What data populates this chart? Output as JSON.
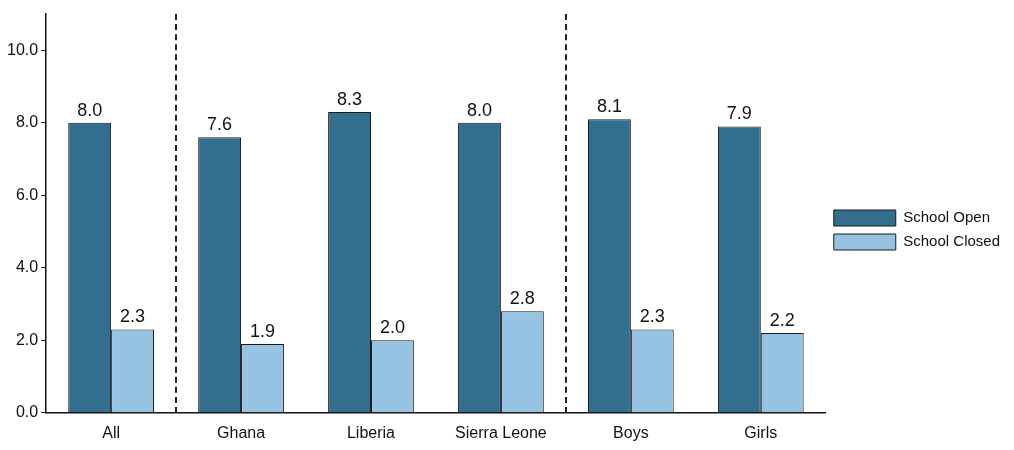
{
  "chart_data": {
    "type": "bar",
    "categories": [
      "All",
      "Ghana",
      "Liberia",
      "Sierra Leone",
      "Boys",
      "Girls"
    ],
    "ylim": [
      0,
      11
    ],
    "yticks": [
      {
        "value": 0,
        "label": "0.0"
      },
      {
        "value": 2,
        "label": "2.0"
      },
      {
        "value": 4,
        "label": "4.0"
      },
      {
        "value": 6,
        "label": "6.0"
      },
      {
        "value": 8,
        "label": "8.0"
      },
      {
        "value": 10,
        "label": "10.0"
      }
    ],
    "series": [
      {
        "name": "School Open",
        "color": "#336e8e",
        "values": [
          8.0,
          7.6,
          8.3,
          8.0,
          8.1,
          7.9
        ],
        "value_labels": [
          "8.0",
          "7.6",
          "8.3",
          "8.0",
          "8.1",
          "7.9"
        ]
      },
      {
        "name": "School Closed",
        "color": "#96c3e2",
        "values": [
          2.3,
          1.9,
          2.0,
          2.8,
          2.3,
          2.2
        ],
        "value_labels": [
          "2.3",
          "1.9",
          "2.0",
          "2.8",
          "2.3",
          "2.2"
        ]
      }
    ],
    "legend": "right",
    "grid": false
  }
}
